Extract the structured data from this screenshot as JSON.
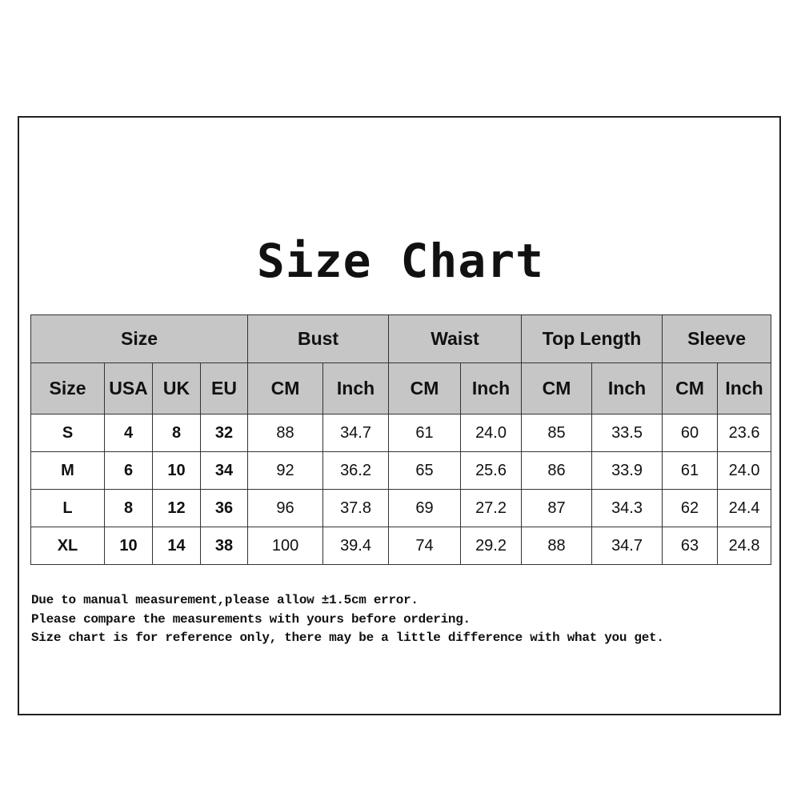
{
  "title": "Size Chart",
  "groups": [
    "Size",
    "Bust",
    "Waist",
    "Top Length",
    "Sleeve"
  ],
  "subheaders": [
    "Size",
    "USA",
    "UK",
    "EU",
    "CM",
    "Inch",
    "CM",
    "Inch",
    "CM",
    "Inch",
    "CM",
    "Inch"
  ],
  "rows": [
    [
      "S",
      "4",
      "8",
      "32",
      "88",
      "34.7",
      "61",
      "24.0",
      "85",
      "33.5",
      "60",
      "23.6"
    ],
    [
      "M",
      "6",
      "10",
      "34",
      "92",
      "36.2",
      "65",
      "25.6",
      "86",
      "33.9",
      "61",
      "24.0"
    ],
    [
      "L",
      "8",
      "12",
      "36",
      "96",
      "37.8",
      "69",
      "27.2",
      "87",
      "34.3",
      "62",
      "24.4"
    ],
    [
      "XL",
      "10",
      "14",
      "38",
      "100",
      "39.4",
      "74",
      "29.2",
      "88",
      "34.7",
      "63",
      "24.8"
    ]
  ],
  "notes": [
    "Due to manual measurement,please allow ±1.5cm error.",
    "Please compare the measurements with yours before ordering.",
    "Size chart is for reference only, there may be a little difference with what you get."
  ],
  "colors": {
    "header_bg": "#c6c6c6",
    "border": "#333333"
  }
}
